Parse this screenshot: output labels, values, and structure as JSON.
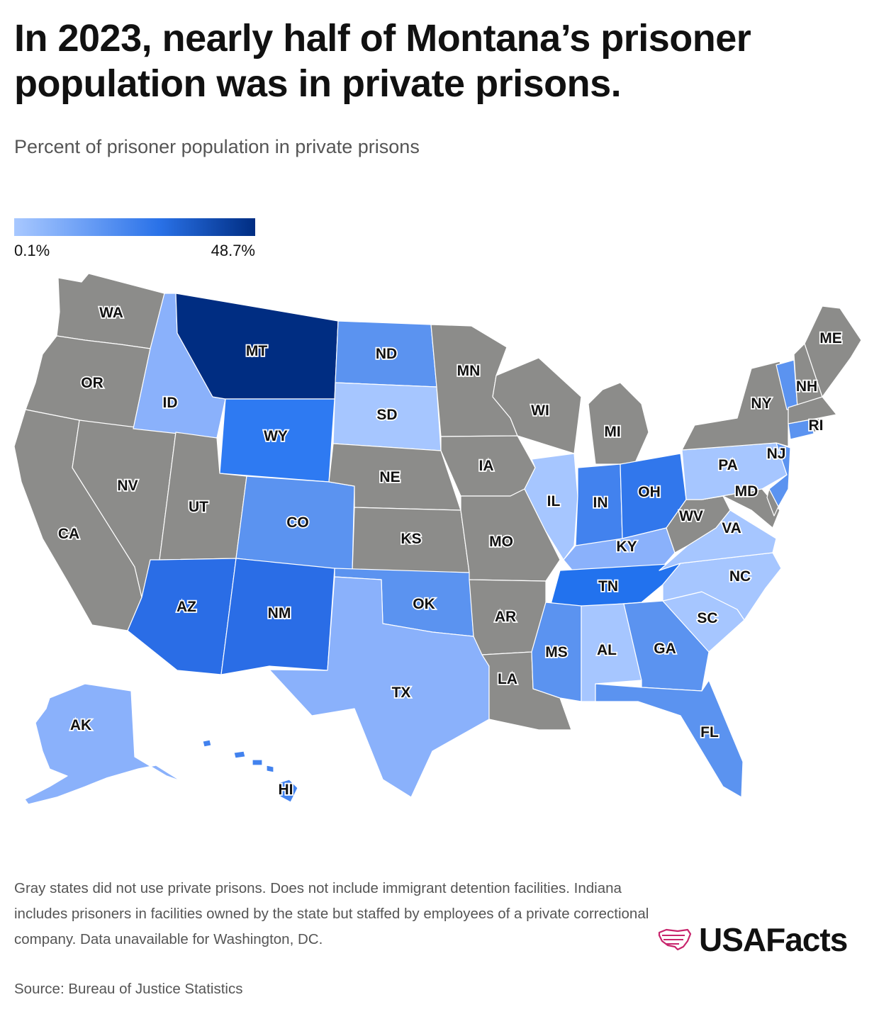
{
  "title": "In 2023, nearly half of Montana’s prisoner population was in private prisons.",
  "subtitle": "Percent of prisoner population in private prisons",
  "legend": {
    "min_label": "0.1%",
    "max_label": "48.7%"
  },
  "colors": {
    "no_private_prisons": "#8c8c8a",
    "scale_low": "#a8c8ff",
    "scale_high": "#002d82",
    "brand_accent": "#c8246c"
  },
  "states": {
    "WA": "WA",
    "OR": "OR",
    "CA": "CA",
    "NV": "NV",
    "ID": "ID",
    "MT": "MT",
    "WY": "WY",
    "UT": "UT",
    "CO": "CO",
    "AZ": "AZ",
    "NM": "NM",
    "ND": "ND",
    "SD": "SD",
    "NE": "NE",
    "KS": "KS",
    "OK": "OK",
    "TX": "TX",
    "MN": "MN",
    "IA": "IA",
    "MO": "MO",
    "AR": "AR",
    "LA": "LA",
    "WI": "WI",
    "IL": "IL",
    "MI": "MI",
    "IN": "IN",
    "OH": "OH",
    "KY": "KY",
    "TN": "TN",
    "MS": "MS",
    "AL": "AL",
    "GA": "GA",
    "FL": "FL",
    "SC": "SC",
    "NC": "NC",
    "VA": "VA",
    "WV": "WV",
    "MD": "MD",
    "PA": "PA",
    "NJ": "NJ",
    "NY": "NY",
    "RI": "RI",
    "NH": "NH",
    "ME": "ME",
    "AK": "AK",
    "HI": "HI"
  },
  "footnote": "Gray states did not use private prisons. Does not include immigrant detention facilities. Indiana includes prisoners in facilities owned by the state but staffed by employees of a private correctional company. Data unavailable for Washington, DC.",
  "source": "Source: Bureau of Justice Statistics",
  "brand": {
    "name": "USAFacts",
    "icon": "usa-map-logo-icon"
  }
}
